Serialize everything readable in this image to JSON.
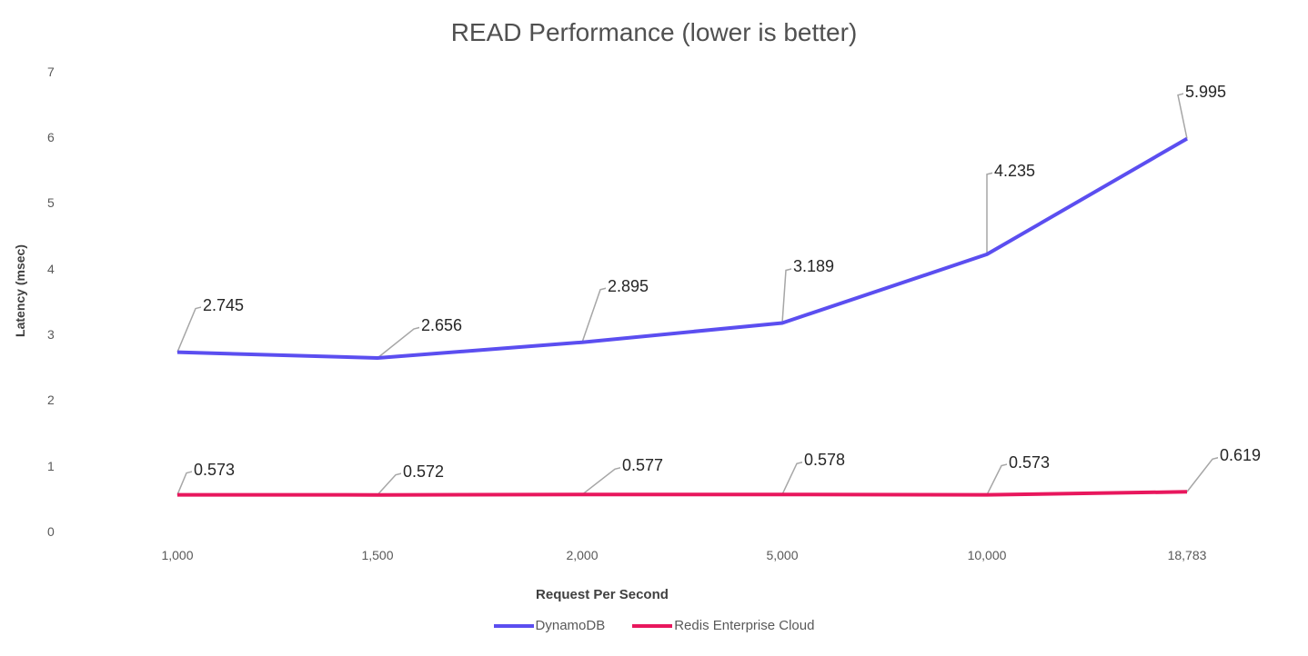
{
  "chart_data": {
    "type": "line",
    "title": "READ Performance (lower is better)",
    "xlabel": "Request Per Second",
    "ylabel": "Latency (msec)",
    "categories": [
      "1,000",
      "1,500",
      "2,000",
      "5,000",
      "10,000",
      "18,783"
    ],
    "yticks": [
      "0",
      "1",
      "2",
      "3",
      "4",
      "5",
      "6",
      "7"
    ],
    "ylim": [
      0,
      7
    ],
    "grid": false,
    "legend_position": "bottom",
    "series": [
      {
        "name": "DynamoDB",
        "color": "#5b4ef0",
        "values": [
          2.745,
          2.656,
          2.895,
          3.189,
          4.235,
          5.995
        ],
        "labels": [
          "2.745",
          "2.656",
          "2.895",
          "3.189",
          "4.235",
          "5.995"
        ]
      },
      {
        "name": "Redis Enterprise Cloud",
        "color": "#e8175d",
        "values": [
          0.573,
          0.572,
          0.577,
          0.578,
          0.573,
          0.619
        ],
        "labels": [
          "0.573",
          "0.572",
          "0.577",
          "0.578",
          "0.573",
          "0.619"
        ]
      }
    ]
  }
}
